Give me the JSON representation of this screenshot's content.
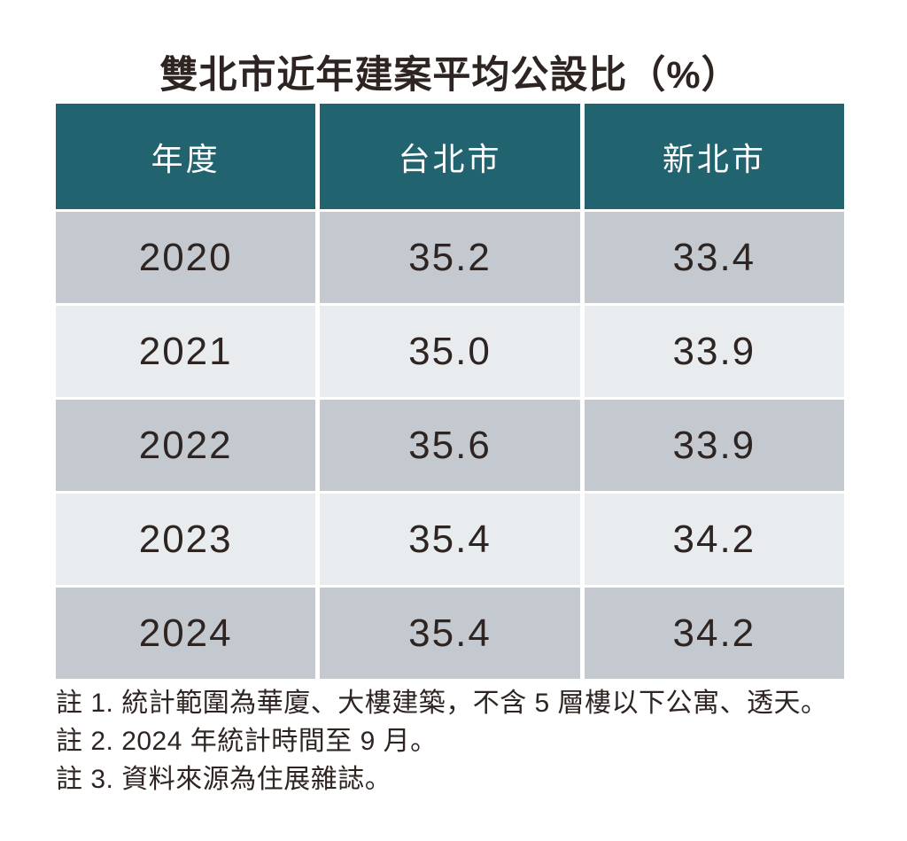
{
  "title": "雙北市近年建案平均公設比（%）",
  "table": {
    "columns": [
      "年度",
      "台北市",
      "新北市"
    ],
    "rows": [
      [
        "2020",
        "35.2",
        "33.4"
      ],
      [
        "2021",
        "35.0",
        "33.9"
      ],
      [
        "2022",
        "35.6",
        "33.9"
      ],
      [
        "2023",
        "35.4",
        "34.2"
      ],
      [
        "2024",
        "35.4",
        "34.2"
      ]
    ]
  },
  "notes": [
    "註 1. 統計範圍為華廈、大樓建築，不含 5 層樓以下公寓、透天。",
    "註 2. 2024 年統計時間至 9 月。",
    "註 3. 資料來源為住展雜誌。"
  ],
  "colors": {
    "header_bg": "#226370",
    "row_dark_bg": "#c3c9ce",
    "row_light_bg": "#e9ecee",
    "text_dark": "#2e2522",
    "header_text": "#ffffff",
    "page_bg": "#ffffff"
  },
  "chart_data": {
    "type": "table",
    "title": "雙北市近年建案平均公設比（%）",
    "columns": [
      "年度",
      "台北市",
      "新北市"
    ],
    "categories": [
      "2020",
      "2021",
      "2022",
      "2023",
      "2024"
    ],
    "series": [
      {
        "name": "台北市",
        "values": [
          35.2,
          35.0,
          35.6,
          35.4,
          35.4
        ]
      },
      {
        "name": "新北市",
        "values": [
          33.4,
          33.9,
          33.9,
          34.2,
          34.2
        ]
      }
    ],
    "unit": "%",
    "notes": [
      "註 1. 統計範圍為華廈、大樓建築，不含 5 層樓以下公寓、透天。",
      "註 2. 2024 年統計時間至 9 月。",
      "註 3. 資料來源為住展雜誌。"
    ]
  }
}
